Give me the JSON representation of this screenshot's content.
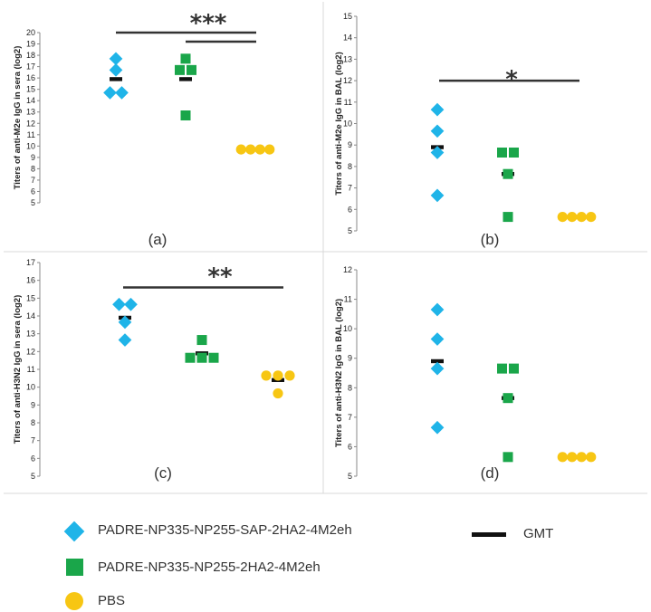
{
  "colors": {
    "diamond": "#1fb4e8",
    "square": "#1aa64a",
    "circle": "#f7c613",
    "gmt": "#111111"
  },
  "legend": {
    "series": [
      {
        "name": "PADRE-NP335-NP255-SAP-2HA2-4M2eh",
        "marker": "diamond",
        "color": "#1fb4e8"
      },
      {
        "name": "PADRE-NP335-NP255-2HA2-4M2eh",
        "marker": "square",
        "color": "#1aa64a"
      },
      {
        "name": "PBS",
        "marker": "circle",
        "color": "#f7c613"
      }
    ],
    "gmt_label": "GMT"
  },
  "chart_data": [
    {
      "type": "scatter",
      "panel_label": "(a)",
      "ylabel": "Titers of anti-M2e IgG in sera (log2)",
      "ylim": [
        5,
        20
      ],
      "yticks": [
        5,
        6,
        7,
        8,
        9,
        10,
        11,
        12,
        13,
        14,
        15,
        16,
        17,
        18,
        19,
        20
      ],
      "groups": [
        {
          "series": "PADRE-NP335-NP255-SAP-2HA2-4M2eh",
          "values": [
            17.7,
            16.7,
            14.7,
            14.7
          ],
          "gmt": 15.9
        },
        {
          "series": "PADRE-NP335-NP255-2HA2-4M2eh",
          "values": [
            17.7,
            16.7,
            16.7,
            12.7
          ],
          "gmt": 15.9
        },
        {
          "series": "PBS",
          "values": [
            9.7,
            9.7,
            9.7,
            9.7
          ],
          "gmt": 9.7
        }
      ],
      "significance": [
        {
          "from_group": 0,
          "to_group": 2,
          "label": "***",
          "level": 20.0
        },
        {
          "from_group": 1,
          "to_group": 2,
          "label": "",
          "level": 19.2
        }
      ]
    },
    {
      "type": "scatter",
      "panel_label": "(b)",
      "ylabel": "Titers of anti-M2e IgG in BAL (log2)",
      "ylim": [
        5,
        15
      ],
      "yticks": [
        5,
        6,
        7,
        8,
        9,
        10,
        11,
        12,
        13,
        14,
        15
      ],
      "groups": [
        {
          "series": "PADRE-NP335-NP255-SAP-2HA2-4M2eh",
          "values": [
            10.65,
            9.65,
            8.65,
            6.65
          ],
          "gmt": 8.9
        },
        {
          "series": "PADRE-NP335-NP255-2HA2-4M2eh",
          "values": [
            8.65,
            8.65,
            7.65,
            5.65
          ],
          "gmt": 7.65
        },
        {
          "series": "PBS",
          "values": [
            5.65,
            5.65,
            5.65,
            5.65
          ],
          "gmt": 5.65
        }
      ],
      "significance": [
        {
          "from_group": 0,
          "to_group": 2,
          "label": "*",
          "level": 12.0
        }
      ]
    },
    {
      "type": "scatter",
      "panel_label": "(c)",
      "ylabel": "Titers of anti-H3N2 IgG in sera (log2)",
      "ylim": [
        5,
        17
      ],
      "yticks": [
        5,
        6,
        7,
        8,
        9,
        10,
        11,
        12,
        13,
        14,
        15,
        16,
        17
      ],
      "groups": [
        {
          "series": "PADRE-NP335-NP255-SAP-2HA2-4M2eh",
          "values": [
            14.65,
            14.65,
            13.65,
            12.65
          ],
          "gmt": 13.9
        },
        {
          "series": "PADRE-NP335-NP255-2HA2-4M2eh",
          "values": [
            12.65,
            11.65,
            11.65,
            11.65
          ],
          "gmt": 11.9
        },
        {
          "series": "PBS",
          "values": [
            10.65,
            10.65,
            10.65,
            9.65
          ],
          "gmt": 10.4
        }
      ],
      "significance": [
        {
          "from_group": 0,
          "to_group": 2,
          "label": "**",
          "level": 15.6
        }
      ]
    },
    {
      "type": "scatter",
      "panel_label": "(d)",
      "ylabel": "Titers of anti-H3N2 IgG in BAL (log2)",
      "ylim": [
        5,
        12
      ],
      "yticks": [
        5,
        6,
        7,
        8,
        9,
        10,
        11,
        12
      ],
      "groups": [
        {
          "series": "PADRE-NP335-NP255-SAP-2HA2-4M2eh",
          "values": [
            10.65,
            9.65,
            8.65,
            6.65
          ],
          "gmt": 8.9
        },
        {
          "series": "PADRE-NP335-NP255-2HA2-4M2eh",
          "values": [
            8.65,
            8.65,
            7.65,
            5.65
          ],
          "gmt": 7.65
        },
        {
          "series": "PBS",
          "values": [
            5.65,
            5.65,
            5.65,
            5.65
          ],
          "gmt": 5.65
        }
      ],
      "significance": []
    }
  ]
}
